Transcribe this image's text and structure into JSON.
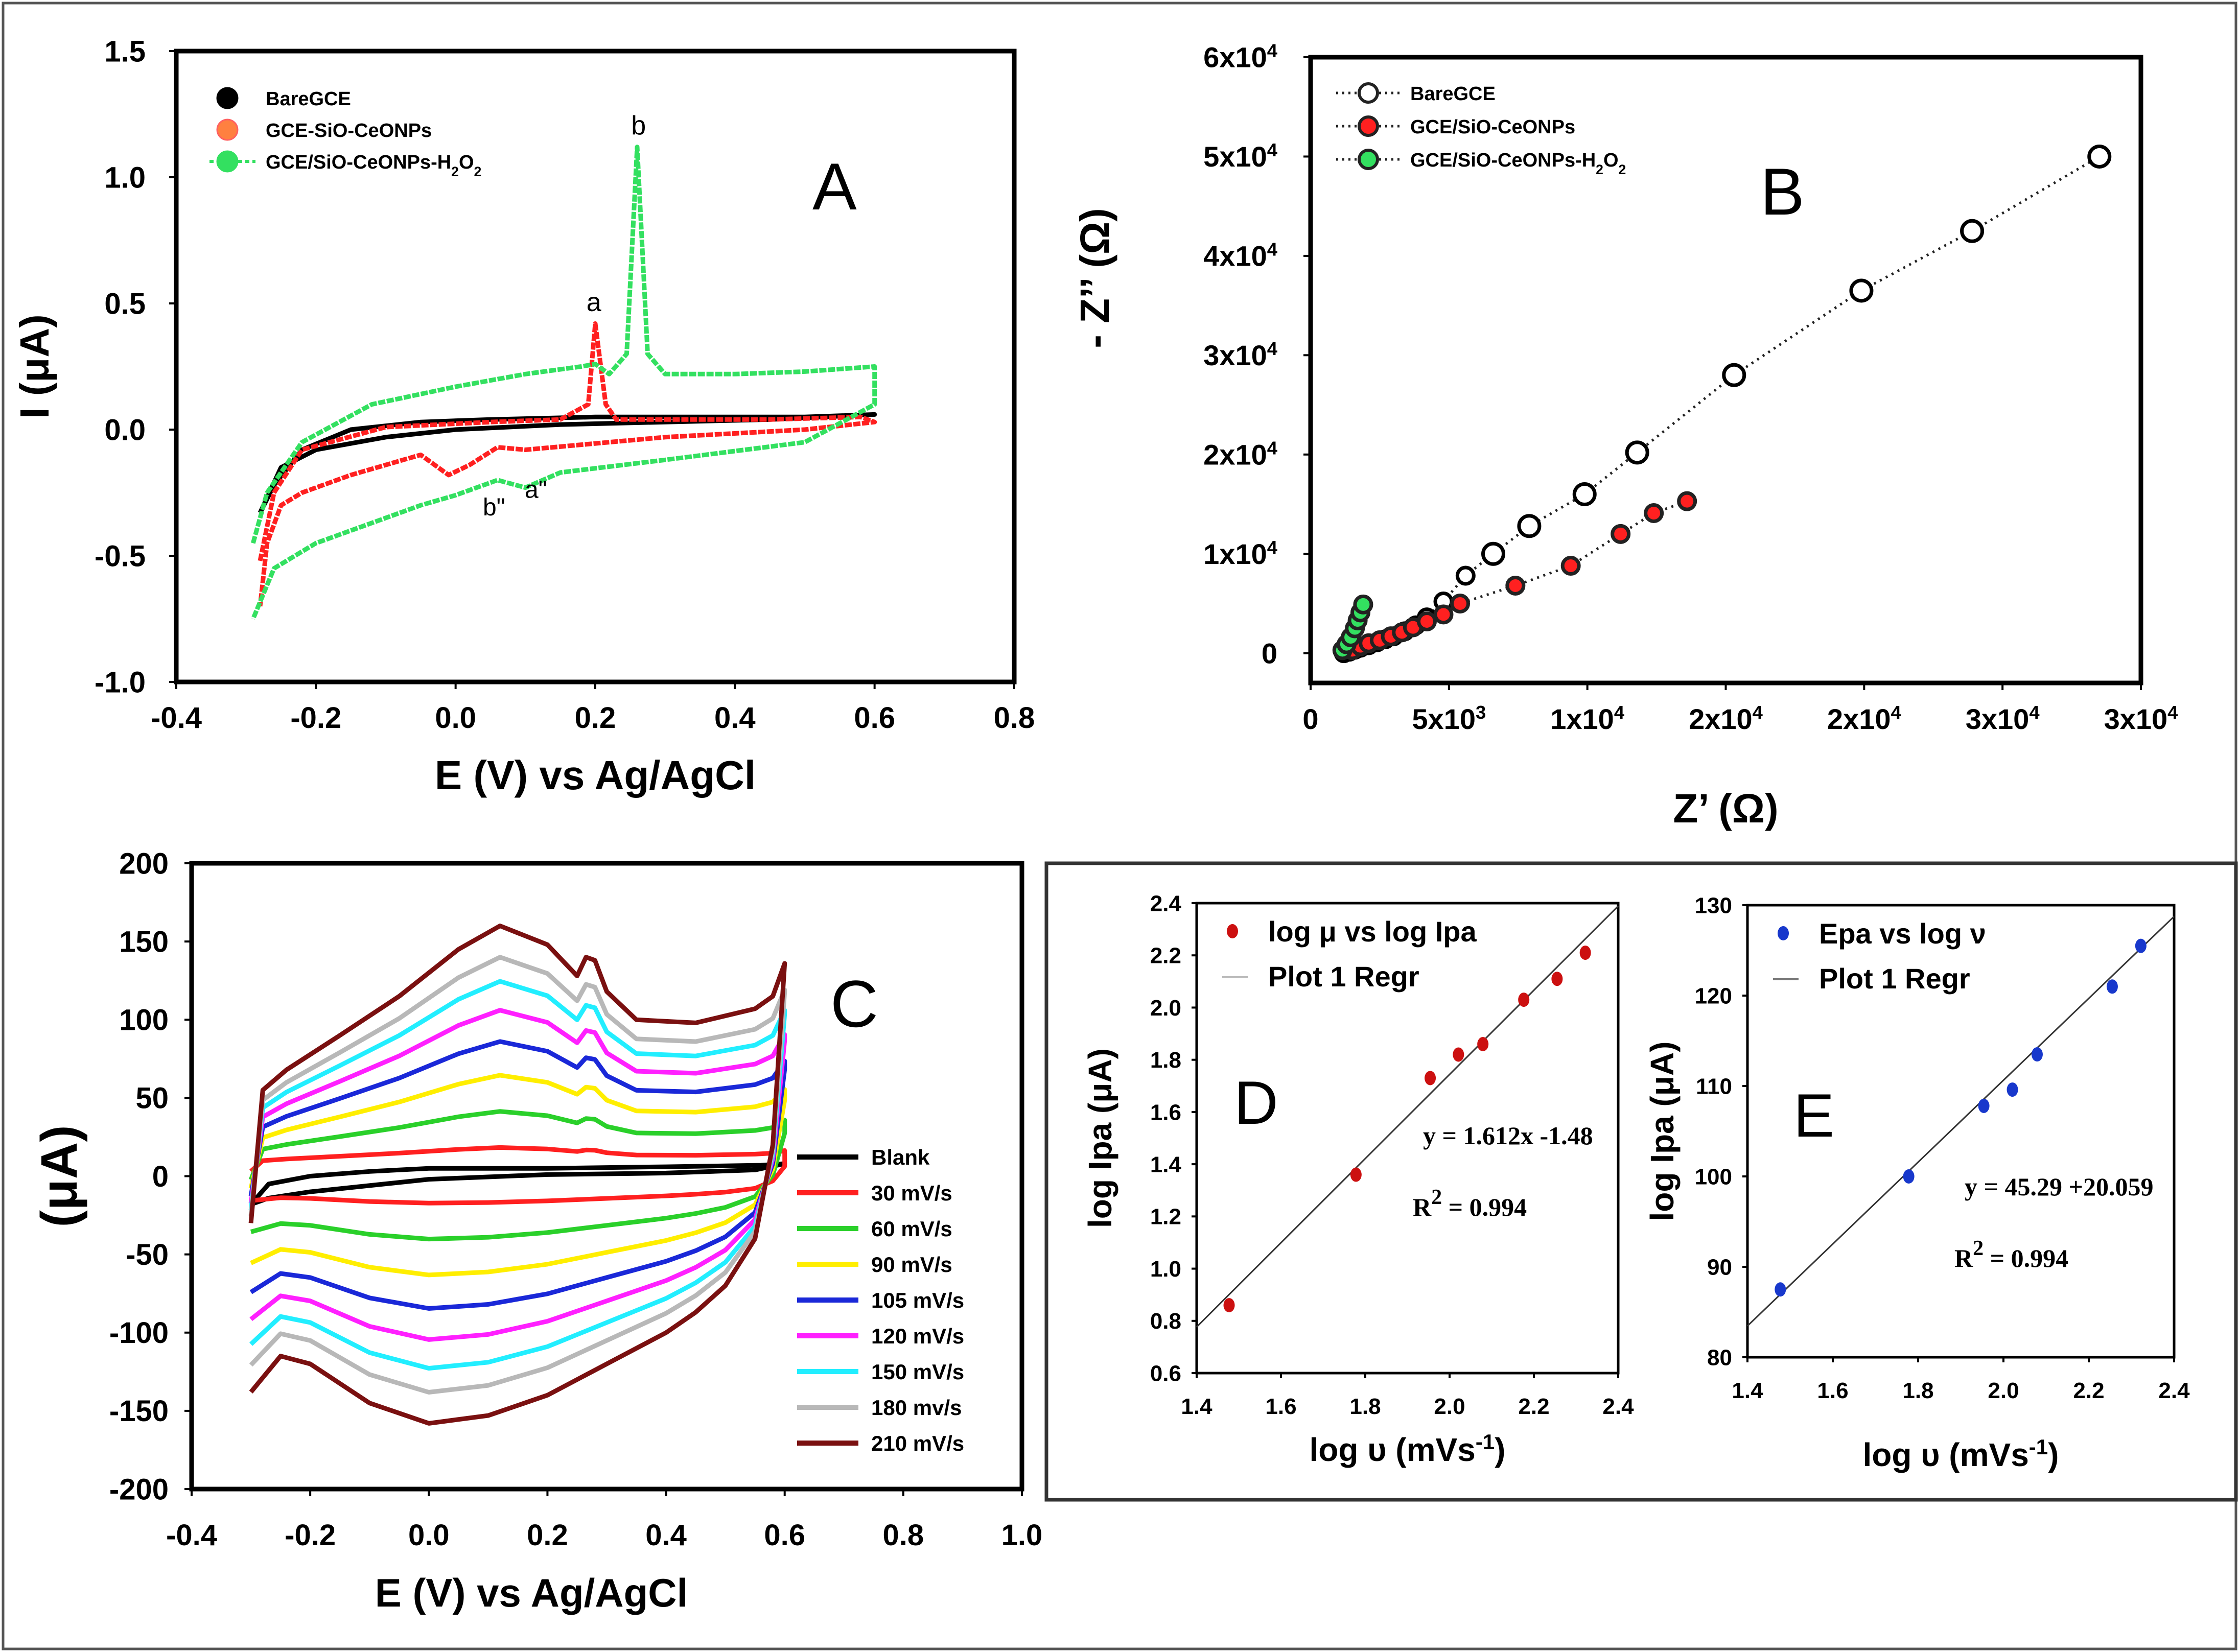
{
  "figure": {
    "border_color": "#555555"
  },
  "chart_data": [
    {
      "id": "A",
      "type": "line",
      "panel_label": "A",
      "xlabel": "E (V) vs Ag/AgCl",
      "ylabel": "I (μA)",
      "xlim": [
        -0.4,
        0.8
      ],
      "ylim": [
        -1.0,
        1.5
      ],
      "xticks": [
        -0.4,
        -0.2,
        0.0,
        0.2,
        0.4,
        0.6,
        0.8
      ],
      "yticks": [
        1.5,
        1.0,
        0.5,
        0.0,
        -0.5,
        -1.0
      ],
      "xtick_labels": [
        "-0.4",
        "-0.2",
        "0.0",
        "0.2",
        "0.4",
        "0.6",
        "0.8"
      ],
      "ytick_labels": [
        "1.5",
        "1.0",
        "0.5",
        "0.0",
        "-0.5",
        "-1.0"
      ],
      "legend": [
        {
          "name": "BareGCE",
          "color": "#000000"
        },
        {
          "name": "GCE-SiO-CeONPs",
          "color": "#ff8040"
        },
        {
          "name": "GCE/SiO-CeONPs-H2O2",
          "color": "#33e060"
        }
      ],
      "annotations": {
        "a": "a",
        "b": "b",
        "b2": "b\"",
        "a2": "a\""
      },
      "series": [
        {
          "name": "BareGCE",
          "color": "#000000",
          "x": [
            -0.28,
            -0.26,
            -0.22,
            -0.15,
            -0.05,
            0.05,
            0.2,
            0.35,
            0.5,
            0.6,
            0.45,
            0.3,
            0.15,
            0.0,
            -0.1,
            -0.2,
            -0.25,
            -0.28
          ],
          "y": [
            -0.33,
            -0.22,
            -0.08,
            0.0,
            0.03,
            0.04,
            0.05,
            0.05,
            0.05,
            0.06,
            0.04,
            0.03,
            0.02,
            0.0,
            -0.03,
            -0.08,
            -0.15,
            -0.33
          ]
        },
        {
          "name": "GCE-SiO-CeONPs",
          "color": "#ff2020",
          "x": [
            -0.28,
            -0.26,
            -0.22,
            -0.1,
            0.05,
            0.15,
            0.19,
            0.2,
            0.215,
            0.23,
            0.3,
            0.45,
            0.58,
            0.6,
            0.5,
            0.3,
            0.1,
            0.06,
            0.02,
            -0.01,
            -0.05,
            -0.15,
            -0.22,
            -0.25,
            -0.27,
            -0.28
          ],
          "y": [
            -0.52,
            -0.25,
            -0.08,
            0.01,
            0.03,
            0.04,
            0.1,
            0.42,
            0.1,
            0.04,
            0.04,
            0.04,
            0.05,
            0.03,
            0.0,
            -0.03,
            -0.08,
            -0.07,
            -0.14,
            -0.18,
            -0.1,
            -0.18,
            -0.25,
            -0.3,
            -0.45,
            -0.7
          ]
        },
        {
          "name": "GCE/SiO-CeONPs-H2O2",
          "color": "#33e060",
          "x": [
            -0.29,
            -0.27,
            -0.22,
            -0.12,
            0.0,
            0.1,
            0.18,
            0.2,
            0.22,
            0.245,
            0.26,
            0.275,
            0.3,
            0.4,
            0.5,
            0.6,
            0.6,
            0.5,
            0.3,
            0.15,
            0.1,
            0.06,
            0.0,
            -0.05,
            -0.1,
            -0.2,
            -0.26,
            -0.29
          ],
          "y": [
            -0.45,
            -0.25,
            -0.05,
            0.1,
            0.17,
            0.22,
            0.25,
            0.26,
            0.22,
            0.3,
            1.12,
            0.3,
            0.22,
            0.22,
            0.23,
            0.25,
            0.1,
            -0.05,
            -0.12,
            -0.17,
            -0.23,
            -0.2,
            -0.26,
            -0.3,
            -0.35,
            -0.45,
            -0.55,
            -0.75
          ]
        }
      ]
    },
    {
      "id": "B",
      "type": "scatter",
      "panel_label": "B",
      "xlabel": "Z’ (Ω)",
      "ylabel": "- Z’’ (Ω)",
      "xlim": [
        0,
        30000
      ],
      "ylim": [
        -3000,
        60000
      ],
      "xticks": [
        0,
        5000,
        10000,
        15000,
        20000,
        25000,
        30000
      ],
      "yticks": [
        0,
        10000,
        20000,
        30000,
        40000,
        50000,
        60000
      ],
      "xtick_labels": [
        "0",
        "5x10",
        "1x10",
        "2x10",
        "2x10",
        "3x10",
        "3x10"
      ],
      "xtick_exps": [
        "",
        "3",
        "4",
        "4",
        "4",
        "4",
        "4"
      ],
      "ytick_labels": [
        "0",
        "1x10",
        "2x10",
        "3x10",
        "4x10",
        "5x10",
        "6x10"
      ],
      "ytick_exps": [
        "",
        "4",
        "4",
        "4",
        "4",
        "4",
        "4"
      ],
      "legend": [
        {
          "name": "BareGCE",
          "color": "#000000"
        },
        {
          "name": "GCE/SiO-CeONPs",
          "color": "#ff2020"
        },
        {
          "name": "GCE/SiO-CeONPs-H2O2",
          "color": "#33e060"
        }
      ],
      "series": [
        {
          "name": "BareGCE",
          "color": "#000000",
          "x": [
            1200,
            1400,
            1600,
            1800,
            2100,
            2400,
            2700,
            3000,
            3400,
            3800,
            4200,
            4800,
            5600,
            6600,
            7900,
            9900,
            11800,
            15300,
            19900,
            23900,
            28500
          ],
          "y": [
            0,
            150,
            350,
            550,
            800,
            1100,
            1400,
            1700,
            2200,
            2800,
            3600,
            5200,
            7800,
            10000,
            12800,
            16000,
            20200,
            28000,
            36500,
            42500,
            50000
          ]
        },
        {
          "name": "GCE/SiO-CeONPs",
          "color": "#ff2020",
          "x": [
            1500,
            1800,
            2100,
            2500,
            2900,
            3300,
            3700,
            4200,
            4800,
            5400,
            7400,
            9400,
            11200,
            12400,
            13600
          ],
          "y": [
            300,
            700,
            1000,
            1300,
            1700,
            2100,
            2600,
            3200,
            3900,
            5000,
            6800,
            8800,
            12000,
            14100,
            15300
          ]
        },
        {
          "name": "GCE/SiO-CeONPs-H2O2",
          "color": "#33e060",
          "x": [
            1150,
            1300,
            1450,
            1600,
            1700,
            1800,
            1900
          ],
          "y": [
            300,
            900,
            1600,
            2500,
            3300,
            4100,
            4900
          ]
        }
      ]
    },
    {
      "id": "C",
      "type": "line",
      "panel_label": "C",
      "xlabel": "E (V) vs Ag/AgCl",
      "ylabel": "(μA)",
      "xlim": [
        -0.4,
        1.0
      ],
      "ylim": [
        -200,
        200
      ],
      "xticks": [
        -0.4,
        -0.2,
        0.0,
        0.2,
        0.4,
        0.6,
        0.8,
        1.0
      ],
      "yticks": [
        200,
        150,
        100,
        50,
        0,
        -50,
        -100,
        -150,
        -200
      ],
      "xtick_labels": [
        "-0.4",
        "-0.2",
        "0.0",
        "0.2",
        "0.4",
        "0.6",
        "0.8",
        "1.0"
      ],
      "ytick_labels": [
        "200",
        "150",
        "100",
        "50",
        "0",
        "-50",
        "-100",
        "-150",
        "-200"
      ],
      "series": [
        {
          "name": "Blank",
          "color": "#000000",
          "scale": 0.0
        },
        {
          "name": "30 mV/s",
          "color": "#ff2020",
          "scale": 0.08
        },
        {
          "name": "60 mV/s",
          "color": "#2ad02a",
          "scale": 0.23
        },
        {
          "name": "90 mV/s",
          "color": "#ffee00",
          "scale": 0.38
        },
        {
          "name": "105 mV/s",
          "color": "#1a28d8",
          "scale": 0.52
        },
        {
          "name": "120 mV/s",
          "color": "#ff20ff",
          "scale": 0.65
        },
        {
          "name": "150 mV/s",
          "color": "#22eeff",
          "scale": 0.77
        },
        {
          "name": "180 mv/s",
          "color": "#b8b8b8",
          "scale": 0.87
        },
        {
          "name": "210 mV/s",
          "color": "#7a1010",
          "scale": 1.0
        }
      ],
      "full_scale_curve": {
        "forward_x": [
          -0.3,
          -0.28,
          -0.24,
          -0.15,
          -0.05,
          0.05,
          0.12,
          0.2,
          0.25,
          0.265,
          0.28,
          0.3,
          0.35,
          0.45,
          0.55,
          0.58,
          0.6
        ],
        "forward_y": [
          -30,
          55,
          68,
          90,
          115,
          145,
          160,
          148,
          128,
          140,
          138,
          118,
          100,
          98,
          107,
          115,
          136
        ],
        "reverse_x": [
          0.6,
          0.58,
          0.55,
          0.5,
          0.45,
          0.4,
          0.3,
          0.2,
          0.1,
          0.0,
          -0.1,
          -0.2,
          -0.25,
          -0.3
        ],
        "reverse_y": [
          136,
          20,
          -40,
          -70,
          -87,
          -100,
          -120,
          -140,
          -153,
          -158,
          -145,
          -120,
          -115,
          -138
        ]
      },
      "blank_curve": {
        "x": [
          -0.3,
          -0.27,
          -0.2,
          -0.1,
          0.0,
          0.2,
          0.4,
          0.56,
          0.6,
          0.55,
          0.4,
          0.2,
          0.0,
          -0.1,
          -0.2,
          -0.27,
          -0.3
        ],
        "y": [
          -18,
          -5,
          0,
          3,
          5,
          5,
          6,
          7,
          8,
          4,
          2,
          1,
          -2,
          -6,
          -10,
          -14,
          -18
        ]
      }
    },
    {
      "id": "D",
      "type": "scatter",
      "panel_label": "D",
      "xlabel": "log υ (mVs",
      "xlabel_exp": "-1",
      "xlabel_end": ")",
      "ylabel": "log Ipa (μA)",
      "xlim": [
        1.4,
        2.4
      ],
      "ylim": [
        0.6,
        2.4
      ],
      "xticks": [
        1.4,
        1.6,
        1.8,
        2.0,
        2.2,
        2.4
      ],
      "yticks": [
        0.6,
        0.8,
        1.0,
        1.2,
        1.4,
        1.6,
        1.8,
        2.0,
        2.2,
        2.4
      ],
      "xtick_labels": [
        "1.4",
        "1.6",
        "1.8",
        "2.0",
        "2.2",
        "2.4"
      ],
      "ytick_labels": [
        "0.6",
        "0.8",
        "1.0",
        "1.2",
        "1.4",
        "1.6",
        "1.8",
        "2.0",
        "2.2",
        "2.4"
      ],
      "legend": [
        {
          "name": "log μ vs log Ipa",
          "kind": "point",
          "color": "#cc1010"
        },
        {
          "name": "Plot 1 Regr",
          "kind": "line",
          "color": "#bbbbbb"
        }
      ],
      "x": [
        1.477,
        1.778,
        1.954,
        2.021,
        2.079,
        2.176,
        2.255,
        2.322
      ],
      "y": [
        0.86,
        1.36,
        1.73,
        1.82,
        1.86,
        2.03,
        2.11,
        2.21
      ],
      "fit": {
        "slope": 1.612,
        "intercept": -1.48,
        "x_range": [
          1.4,
          2.4
        ]
      },
      "equation": "y = 1.612x -1.48",
      "r2_label": "R",
      "r2_exp": "2",
      "r2_value": " = 0.994"
    },
    {
      "id": "E",
      "type": "scatter",
      "panel_label": "E",
      "xlabel": "log υ (mVs",
      "xlabel_exp": "-1",
      "xlabel_end": ")",
      "ylabel": "log Ipa (μA)",
      "xlim": [
        1.4,
        2.4
      ],
      "ylim": [
        80,
        130
      ],
      "xticks": [
        1.4,
        1.6,
        1.8,
        2.0,
        2.2,
        2.4
      ],
      "yticks": [
        80,
        90,
        100,
        110,
        120,
        130
      ],
      "xtick_labels": [
        "1.4",
        "1.6",
        "1.8",
        "2.0",
        "2.2",
        "2.4"
      ],
      "ytick_labels": [
        "80",
        "90",
        "100",
        "110",
        "120",
        "130"
      ],
      "legend": [
        {
          "name": "Epa vs log ν",
          "kind": "point",
          "color": "#1838cc"
        },
        {
          "name": "Plot 1 Regr",
          "kind": "line",
          "color": "#777777"
        }
      ],
      "x": [
        1.477,
        1.778,
        1.954,
        2.021,
        2.079,
        2.255,
        2.322
      ],
      "y": [
        87.5,
        100.0,
        107.8,
        109.6,
        113.5,
        121.0,
        125.5
      ],
      "fit": {
        "slope": 45.29,
        "intercept": 20.059,
        "x_range": [
          1.4,
          2.4
        ]
      },
      "equation": "y = 45.29 +20.059",
      "r2_label": "R",
      "r2_exp": "2",
      "r2_value": " = 0.994"
    }
  ]
}
